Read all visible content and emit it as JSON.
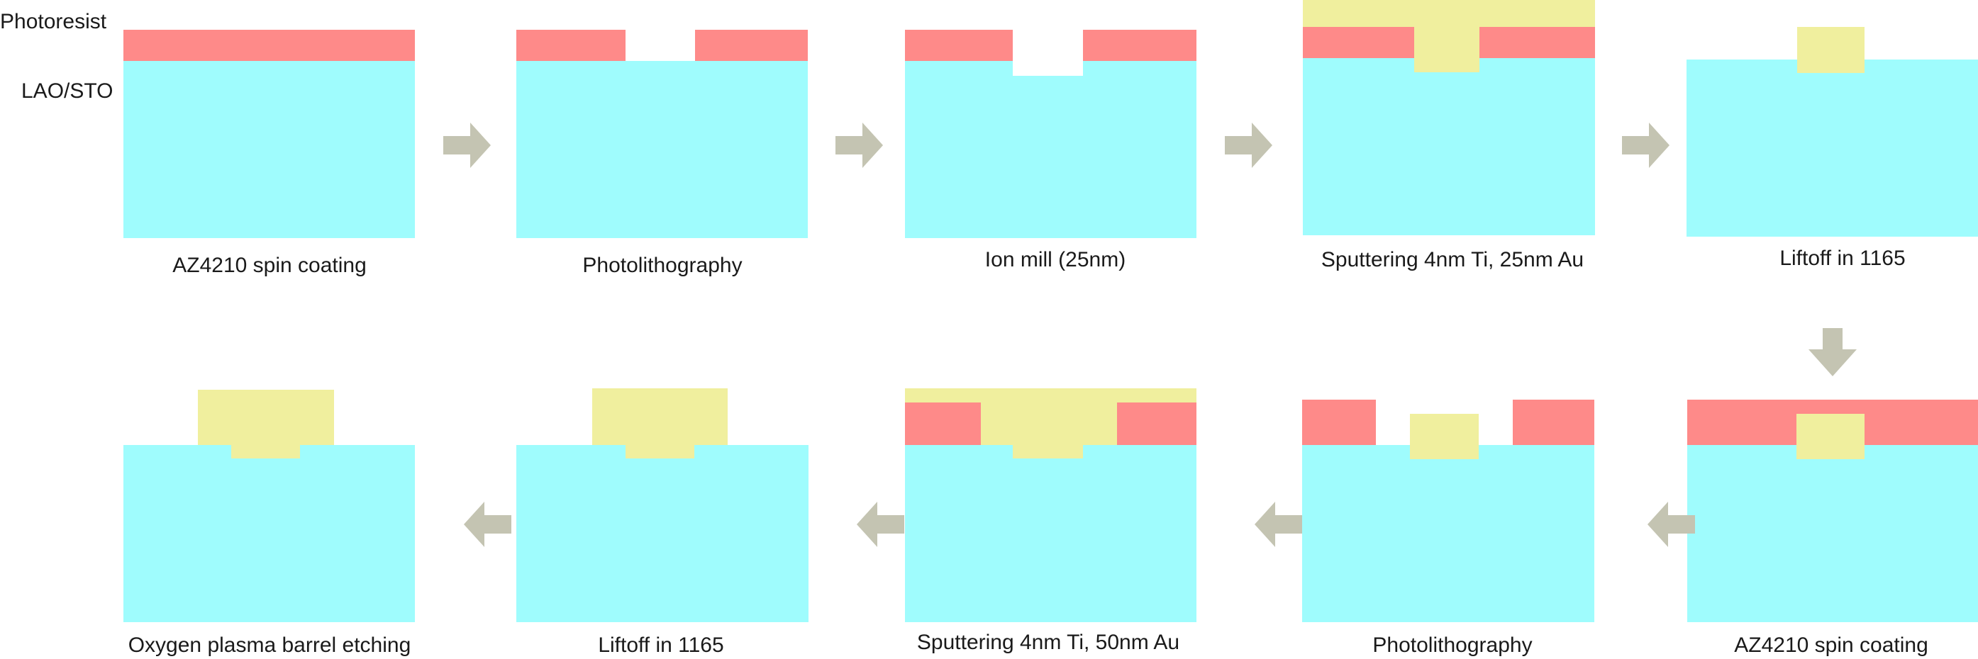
{
  "legend": {
    "photoresist": "Photoresist",
    "substrate": "LAO/STO"
  },
  "colors": {
    "substrate": "#9ffcfd",
    "photoresist": "#fe8a89",
    "metal": "#f0ef9e",
    "arrow": "#c4c4b2",
    "text": "#1a1a1a"
  },
  "steps": [
    {
      "caption": "AZ4210 spin coating"
    },
    {
      "caption": "Photolithography"
    },
    {
      "caption": "Ion mill (25nm)"
    },
    {
      "caption": "Sputtering 4nm Ti, 25nm Au"
    },
    {
      "caption": "Liftoff in 1165"
    },
    {
      "caption": "AZ4210 spin coating"
    },
    {
      "caption": "Photolithography"
    },
    {
      "caption": "Sputtering 4nm Ti, 50nm Au"
    },
    {
      "caption": "Liftoff in 1165"
    },
    {
      "caption": "Oxygen plasma barrel etching"
    }
  ],
  "arrows": [
    {
      "direction": "right"
    },
    {
      "direction": "right"
    },
    {
      "direction": "right"
    },
    {
      "direction": "right"
    },
    {
      "direction": "down"
    },
    {
      "direction": "left"
    },
    {
      "direction": "left"
    },
    {
      "direction": "left"
    },
    {
      "direction": "left"
    }
  ]
}
